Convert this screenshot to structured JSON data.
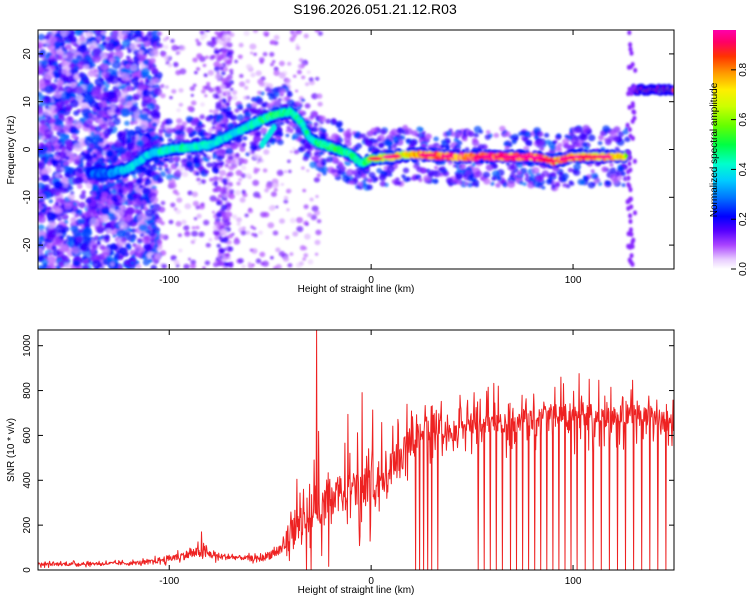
{
  "title": "S196.2026.051.21.12.R03",
  "colors": {
    "snr_line": "#ee2222",
    "frame": "#000000"
  },
  "chart_data": [
    {
      "type": "heatmap",
      "name": "spectrogram",
      "xlabel": "Height of straight line (km)",
      "ylabel": "Frequency (Hz)",
      "xlim": [
        -165,
        150
      ],
      "ylim": [
        -25,
        25
      ],
      "xticks": [
        -100,
        0,
        100
      ],
      "xtick_labels": [
        "-100",
        "0",
        "100"
      ],
      "yticks": [
        -20,
        -10,
        0,
        10,
        20
      ],
      "ytick_labels": [
        "-20",
        "-10",
        "0",
        "10",
        "20"
      ],
      "colorbar": {
        "label": "Normalized spectral amplitude",
        "range": [
          0.0,
          0.96
        ],
        "ticks": [
          0.0,
          0.2,
          0.4,
          0.6,
          0.8
        ],
        "tick_labels": [
          "0.0",
          "0.2",
          "0.4",
          "0.6",
          "0.8"
        ],
        "colors": [
          "#ffffff",
          "#cc66ff",
          "#6600ff",
          "#0000ff",
          "#00ccff",
          "#00ff88",
          "#66ff00",
          "#ffff00",
          "#ff8800",
          "#ff0000",
          "#ff00aa"
        ]
      },
      "ridge": {
        "x": [
          -130,
          -120,
          -110,
          -100,
          -90,
          -80,
          -70,
          -60,
          -50,
          -40,
          -35,
          -30,
          -20,
          -10,
          -5,
          0,
          10,
          20,
          30,
          40,
          50,
          60,
          70,
          80,
          90,
          100,
          110,
          120,
          127
        ],
        "freq": [
          -5,
          -4,
          -1,
          0,
          0.5,
          1,
          3,
          5,
          7,
          8,
          6,
          2,
          0.5,
          -1,
          -3,
          -2,
          -1.5,
          -1,
          -1.2,
          -1.5,
          -1.5,
          -1.5,
          -1.5,
          -1.5,
          -2.5,
          -1.5,
          -1.5,
          -1.5,
          -1.5
        ],
        "amplitude": [
          0.3,
          0.4,
          0.4,
          0.45,
          0.45,
          0.4,
          0.4,
          0.45,
          0.5,
          0.5,
          0.45,
          0.45,
          0.5,
          0.5,
          0.45,
          0.6,
          0.7,
          0.75,
          0.85,
          0.85,
          0.9,
          0.95,
          0.9,
          0.85,
          0.8,
          0.8,
          0.8,
          0.8,
          0.7
        ]
      },
      "tail": {
        "x": [
          130,
          150
        ],
        "freq": 12.5,
        "amplitude": 0.9
      }
    },
    {
      "type": "line",
      "name": "snr",
      "xlabel": "Height of straight line (km)",
      "ylabel": "SNR (10 * v/v)",
      "xlim": [
        -165,
        150
      ],
      "ylim": [
        0,
        1070
      ],
      "xticks": [
        -100,
        0,
        100
      ],
      "xtick_labels": [
        "-100",
        "0",
        "100"
      ],
      "yticks": [
        0,
        200,
        400,
        600,
        800,
        1000
      ],
      "ytick_labels": [
        "0",
        "200",
        "400",
        "600",
        "800",
        "1000"
      ],
      "envelope": {
        "x": [
          -165,
          -120,
          -110,
          -95,
          -85,
          -75,
          -65,
          -55,
          -45,
          -40,
          -35,
          -30,
          -28,
          -25,
          -20,
          -10,
          0,
          10,
          18,
          25,
          30,
          40,
          50,
          60,
          70,
          80,
          90,
          100,
          110,
          120,
          130,
          140,
          150
        ],
        "base": [
          25,
          30,
          35,
          60,
          80,
          60,
          55,
          50,
          90,
          150,
          220,
          250,
          300,
          280,
          320,
          360,
          380,
          450,
          550,
          620,
          640,
          610,
          640,
          650,
          660,
          680,
          690,
          690,
          690,
          690,
          690,
          690,
          640
        ],
        "noise": [
          15,
          15,
          20,
          35,
          50,
          30,
          20,
          25,
          60,
          120,
          150,
          170,
          150,
          150,
          160,
          170,
          160,
          150,
          150,
          120,
          110,
          80,
          80,
          90,
          100,
          110,
          100,
          110,
          110,
          100,
          100,
          90,
          80
        ]
      },
      "spikes": [
        {
          "x": -27,
          "value": 1070
        },
        {
          "x": -84,
          "value": 170
        },
        {
          "x": 94,
          "value": 860
        },
        {
          "x": 108,
          "value": 850
        }
      ],
      "dropouts_x": [
        22,
        24,
        26,
        28,
        30,
        33,
        53,
        56,
        59,
        62,
        65,
        69,
        72,
        75,
        78,
        81,
        84,
        87,
        90,
        93,
        96,
        99,
        102,
        106,
        110,
        114,
        118,
        122,
        126,
        130,
        134,
        138,
        142,
        146
      ]
    }
  ]
}
